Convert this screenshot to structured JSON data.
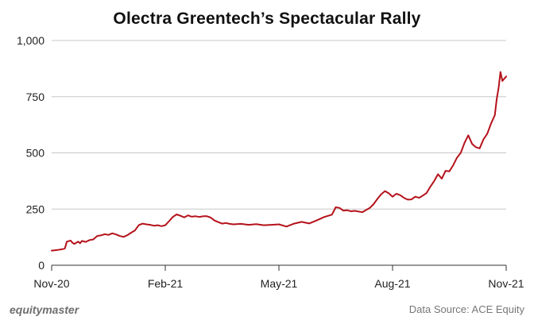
{
  "chart_data": {
    "type": "line",
    "title": "Olectra Greentech’s Spectacular Rally",
    "xlabel": "",
    "ylabel": "",
    "ylim": [
      0,
      1000
    ],
    "yticks": [
      0,
      250,
      500,
      750,
      1000
    ],
    "ytick_labels": [
      "0",
      "250",
      "500",
      "750",
      "1,000"
    ],
    "xlim": [
      0,
      12
    ],
    "xticks": [
      0,
      3,
      6,
      9,
      12
    ],
    "xtick_labels": [
      "Nov-20",
      "Feb-21",
      "May-21",
      "Aug-21",
      "Nov-21"
    ],
    "grid": "horizontal",
    "legend": "none",
    "series": [
      {
        "color": "#b5121b",
        "x": [
          0,
          0.15,
          0.3,
          0.35,
          0.4,
          0.5,
          0.55,
          0.6,
          0.7,
          0.75,
          0.8,
          0.9,
          1.0,
          1.1,
          1.2,
          1.3,
          1.4,
          1.5,
          1.6,
          1.7,
          1.8,
          1.9,
          2.0,
          2.1,
          2.2,
          2.3,
          2.4,
          2.5,
          2.6,
          2.7,
          2.8,
          2.9,
          3.0,
          3.1,
          3.2,
          3.3,
          3.4,
          3.5,
          3.6,
          3.7,
          3.8,
          3.9,
          4.0,
          4.1,
          4.2,
          4.3,
          4.4,
          4.5,
          4.6,
          4.7,
          4.8,
          5.0,
          5.2,
          5.4,
          5.6,
          5.8,
          6.0,
          6.2,
          6.4,
          6.6,
          6.8,
          7.0,
          7.2,
          7.4,
          7.5,
          7.6,
          7.7,
          7.8,
          7.9,
          8.0,
          8.2,
          8.4,
          8.5,
          8.6,
          8.7,
          8.8,
          8.9,
          9.0,
          9.1,
          9.2,
          9.3,
          9.4,
          9.5,
          9.6,
          9.7,
          9.8,
          9.9,
          10.0,
          10.1,
          10.2,
          10.3,
          10.4,
          10.5,
          10.6,
          10.7,
          10.8,
          10.9,
          11.0,
          11.1,
          11.2,
          11.3,
          11.4,
          11.5,
          11.6,
          11.7,
          11.75,
          11.8,
          11.85,
          11.9,
          12.0
        ],
        "values": [
          65,
          68,
          72,
          75,
          105,
          110,
          100,
          95,
          105,
          98,
          108,
          104,
          112,
          115,
          130,
          133,
          138,
          135,
          142,
          137,
          130,
          126,
          134,
          145,
          155,
          178,
          185,
          182,
          180,
          176,
          178,
          174,
          178,
          196,
          215,
          226,
          220,
          213,
          222,
          216,
          218,
          215,
          218,
          218,
          212,
          199,
          192,
          185,
          188,
          184,
          182,
          184,
          180,
          183,
          178,
          180,
          182,
          172,
          185,
          193,
          186,
          200,
          215,
          225,
          258,
          255,
          243,
          245,
          240,
          242,
          236,
          255,
          272,
          295,
          316,
          330,
          320,
          305,
          318,
          312,
          300,
          292,
          293,
          305,
          300,
          310,
          322,
          350,
          375,
          405,
          385,
          420,
          418,
          445,
          478,
          500,
          545,
          578,
          540,
          525,
          520,
          560,
          585,
          630,
          668,
          740,
          790,
          860,
          820,
          840
        ]
      }
    ]
  },
  "footer": {
    "brand": "equitymaster",
    "source": "Data Source: ACE Equity"
  }
}
